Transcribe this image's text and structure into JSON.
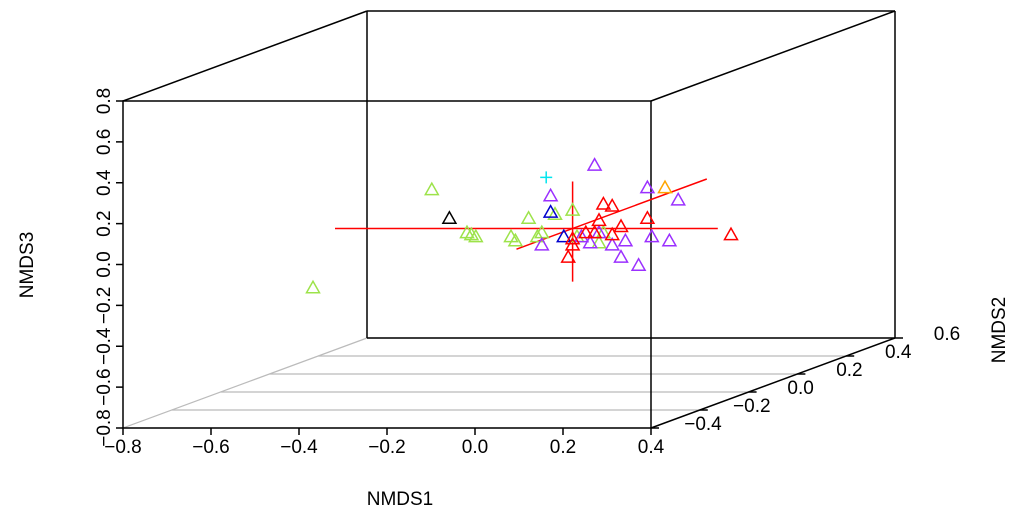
{
  "chart_data": {
    "type": "scatter3d",
    "xlabel": "NMDS1",
    "ylabel": "NMDS2",
    "zlabel": "NMDS3",
    "xlim": [
      -0.8,
      0.4
    ],
    "ylim": [
      -0.4,
      0.6
    ],
    "zlim": [
      -0.8,
      0.8
    ],
    "xticks": [
      {
        "value": -0.8,
        "label": "−0.8"
      },
      {
        "value": -0.6,
        "label": "−0.6"
      },
      {
        "value": -0.4,
        "label": "−0.4"
      },
      {
        "value": -0.2,
        "label": "−0.2"
      },
      {
        "value": 0,
        "label": "0.0"
      },
      0.2,
      0.4
    ],
    "yticks": [
      {
        "value": -0.4,
        "label": "−0.4"
      },
      {
        "value": -0.2,
        "label": "−0.2"
      },
      {
        "value": 0,
        "label": "0.0"
      },
      0.2,
      0.4,
      0.6
    ],
    "zticks": [
      {
        "value": -0.8,
        "label": "−0.8"
      },
      {
        "value": -0.6,
        "label": "−0.6"
      },
      {
        "value": -0.4,
        "label": "−0.4"
      },
      {
        "value": -0.2,
        "label": "−0.2"
      },
      {
        "value": 0,
        "label": "0.0"
      },
      0.2,
      0.4,
      0.6,
      0.8
    ],
    "grid": true,
    "series": [
      {
        "color": "#9de34a",
        "marker": "triangle",
        "x": [
          -0.59,
          -0.32,
          -0.24,
          -0.23,
          -0.22,
          -0.14,
          -0.13,
          -0.1,
          -0.08,
          -0.07,
          -0.04,
          0.0,
          0.01,
          0.06,
          0.07
        ],
        "y": [
          0,
          0,
          0,
          0,
          0,
          0,
          0,
          0,
          0,
          0,
          0,
          0,
          0,
          0,
          0
        ],
        "z": [
          -0.29,
          0.19,
          -0.02,
          -0.03,
          -0.04,
          -0.04,
          -0.06,
          0.05,
          -0.04,
          -0.02,
          0.07,
          0.09,
          -0.04,
          -0.07,
          -0.02
        ]
      },
      {
        "color": "#000000",
        "marker": "triangle",
        "x": [
          -0.28
        ],
        "y": [
          0
        ],
        "z": [
          0.05
        ]
      },
      {
        "color": "#00e5ee",
        "marker": "plus",
        "x": [
          -0.06
        ],
        "y": [
          0
        ],
        "z": [
          0.25
        ]
      },
      {
        "color": "#0000cd",
        "marker": "triangle",
        "x": [
          -0.05,
          -0.02
        ],
        "y": [
          0,
          0
        ],
        "z": [
          0.08,
          -0.04
        ]
      },
      {
        "color": "#9b30ff",
        "marker": "triangle",
        "x": [
          0.05,
          -0.05,
          0.02,
          0.04,
          0.09,
          0.11,
          0.12,
          0.15,
          0.18,
          0.22,
          0.24,
          0.17,
          -0.07,
          0.06
        ],
        "y": [
          0,
          0,
          0,
          0,
          0,
          0,
          0,
          0,
          0,
          0,
          0,
          0,
          0,
          0
        ],
        "z": [
          0.31,
          0.16,
          -0.04,
          -0.07,
          -0.08,
          -0.14,
          -0.06,
          -0.18,
          -0.04,
          -0.06,
          0.14,
          0.2,
          -0.08,
          -0.02
        ]
      },
      {
        "color": "#ff0000",
        "marker": "triangle",
        "x": [
          0.07,
          0.09,
          0.06,
          0.05,
          0.03,
          0.0,
          -0.01,
          0.09,
          0.11,
          0.17,
          0.36,
          0.0
        ],
        "y": [
          0,
          0,
          0,
          0,
          0,
          0,
          0,
          0,
          0,
          0,
          0,
          0
        ],
        "z": [
          0.12,
          0.11,
          0.04,
          -0.02,
          -0.02,
          -0.05,
          -0.14,
          -0.03,
          0.01,
          0.05,
          -0.03,
          -0.08
        ]
      },
      {
        "color": "#ffa500",
        "marker": "triangle",
        "x": [
          0.21
        ],
        "y": [
          0
        ],
        "z": [
          0.2
        ]
      }
    ],
    "lines": [
      {
        "color": "#ff0000",
        "x": [
          -0.54,
          0.33
        ],
        "y": [
          0,
          0
        ],
        "z": [
          0,
          0
        ]
      },
      {
        "color": "#ff0000",
        "x": [
          0,
          0
        ],
        "y": [
          0,
          0
        ],
        "z": [
          0.23,
          -0.26
        ]
      },
      {
        "color": "#ff0000",
        "x": [
          0,
          0
        ],
        "y": [
          -0.23,
          0.55
        ],
        "z": [
          0,
          0
        ]
      }
    ]
  }
}
